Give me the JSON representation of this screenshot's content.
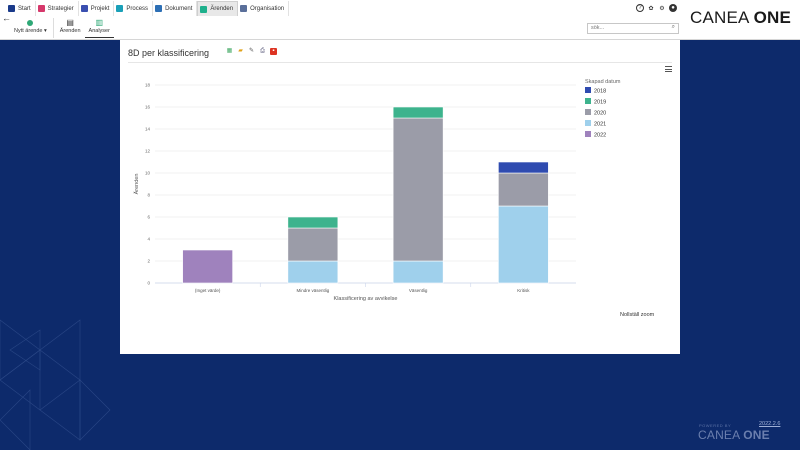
{
  "nav": {
    "tabs": [
      {
        "label": "Start",
        "icon": "home-icon",
        "color": "#1a3a8a"
      },
      {
        "label": "Strategier",
        "icon": "strategy-icon",
        "color": "#d6386b"
      },
      {
        "label": "Projekt",
        "icon": "project-icon",
        "color": "#3a4fb0"
      },
      {
        "label": "Process",
        "icon": "process-icon",
        "color": "#1aa0b8"
      },
      {
        "label": "Dokument",
        "icon": "document-icon",
        "color": "#2d6fb5"
      },
      {
        "label": "Ärenden",
        "icon": "case-icon",
        "color": "#1eb08c"
      },
      {
        "label": "Organisation",
        "icon": "organisation-icon",
        "color": "#5a6f9a"
      }
    ]
  },
  "brand": {
    "light": "CANEA ",
    "bold": "ONE"
  },
  "subbar": {
    "new_case": "Nytt ärende",
    "cases": "Ärenden",
    "analyses": "Analyser"
  },
  "search": {
    "placeholder": "sök..."
  },
  "panel": {
    "title": "8D per klassificering",
    "reset_zoom": "Nollställ zoom"
  },
  "colors": {
    "2018": "#2f4bb0",
    "2019": "#3db38d",
    "2020": "#9b9ca8",
    "2021": "#9fd0ec",
    "2022": "#9f82bd"
  },
  "chart_data": {
    "type": "bar",
    "stacked": true,
    "categories": [
      "(Inget värde)",
      "Mindre väsentlig",
      "Väsentlig",
      "Kritisk"
    ],
    "series": [
      {
        "name": "2018",
        "values": [
          0,
          0,
          0,
          1
        ]
      },
      {
        "name": "2019",
        "values": [
          0,
          1,
          1,
          0
        ]
      },
      {
        "name": "2020",
        "values": [
          0,
          3,
          13,
          3
        ]
      },
      {
        "name": "2021",
        "values": [
          0,
          2,
          2,
          7
        ]
      },
      {
        "name": "2022",
        "values": [
          3,
          0,
          0,
          0
        ]
      }
    ],
    "xlabel": "Klassificering av avvikelse",
    "ylabel": "Ärenden",
    "ylim": [
      0,
      18
    ],
    "yticks": [
      0,
      2,
      4,
      6,
      8,
      10,
      12,
      14,
      16,
      18
    ],
    "legend_title": "Skapad datum",
    "legend_position": "right",
    "grid": true
  },
  "footer": {
    "powered_by": "POWERED BY",
    "brand_light": "CANEA ",
    "brand_bold": "ONE",
    "version": "2022.2.6"
  }
}
